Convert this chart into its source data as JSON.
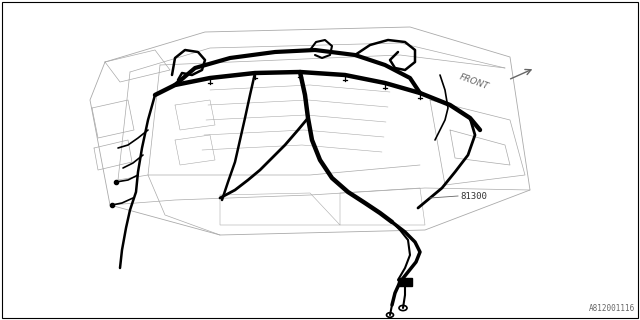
{
  "background_color": "#ffffff",
  "border_color": "#000000",
  "fig_width": 6.4,
  "fig_height": 3.2,
  "dpi": 100,
  "label_81300": "81300",
  "label_front": "FRONT",
  "label_part_no": "A812001116",
  "wire_color": "#000000",
  "panel_line_color": "#aaaaaa",
  "text_color": "#555555",
  "front_arrow_color": "#666666"
}
